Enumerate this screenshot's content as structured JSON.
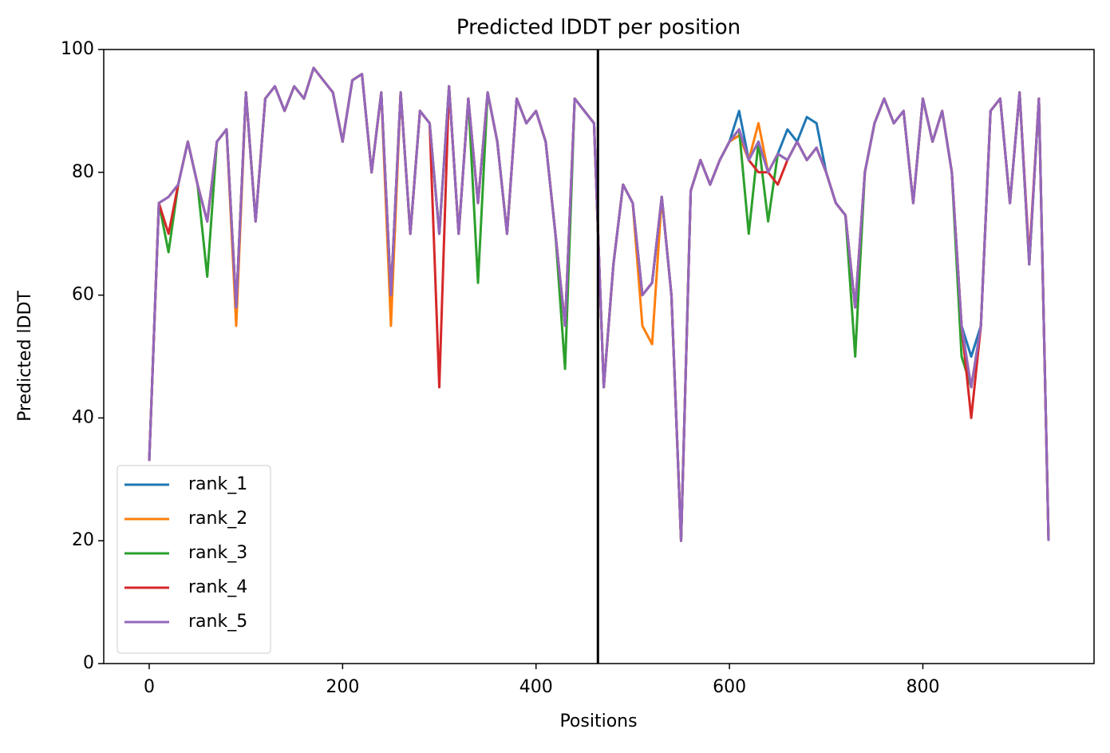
{
  "chart_data": {
    "type": "line",
    "title": "Predicted lDDT per position",
    "xlabel": "Positions",
    "ylabel": "Predicted lDDT",
    "x": [
      0,
      10,
      20,
      30,
      40,
      50,
      60,
      70,
      80,
      90,
      100,
      110,
      120,
      130,
      140,
      150,
      160,
      170,
      180,
      190,
      200,
      210,
      220,
      230,
      240,
      250,
      260,
      270,
      280,
      290,
      300,
      310,
      320,
      330,
      340,
      350,
      360,
      370,
      380,
      390,
      400,
      410,
      420,
      430,
      440,
      450,
      460,
      470,
      480,
      490,
      500,
      510,
      520,
      530,
      540,
      550,
      560,
      570,
      580,
      590,
      600,
      610,
      620,
      630,
      640,
      650,
      660,
      670,
      680,
      690,
      700,
      710,
      720,
      730,
      740,
      750,
      760,
      770,
      780,
      790,
      800,
      810,
      820,
      830,
      840,
      850,
      860,
      870,
      880,
      890,
      900,
      910,
      920,
      930
    ],
    "series": [
      {
        "name": "rank_1",
        "color": "#1f77b4",
        "values": [
          33,
          75,
          76,
          78,
          85,
          78,
          72,
          85,
          87,
          58,
          93,
          72,
          92,
          94,
          90,
          94,
          92,
          97,
          95,
          93,
          85,
          95,
          96,
          80,
          93,
          60,
          93,
          70,
          90,
          88,
          70,
          94,
          70,
          92,
          75,
          93,
          85,
          70,
          92,
          88,
          90,
          85,
          70,
          55,
          92,
          90,
          88,
          45,
          65,
          78,
          75,
          60,
          62,
          76,
          60,
          20,
          77,
          82,
          78,
          82,
          85,
          90,
          82,
          85,
          80,
          83,
          87,
          85,
          89,
          88,
          80,
          75,
          73,
          58,
          80,
          88,
          92,
          88,
          90,
          75,
          92,
          85,
          90,
          80,
          55,
          50,
          55,
          90,
          92,
          75,
          93,
          65,
          92,
          20
        ]
      },
      {
        "name": "rank_2",
        "color": "#ff7f0e",
        "values": [
          33,
          75,
          76,
          78,
          85,
          78,
          72,
          85,
          87,
          55,
          93,
          72,
          92,
          94,
          90,
          94,
          92,
          97,
          95,
          93,
          85,
          95,
          96,
          80,
          93,
          55,
          93,
          70,
          90,
          88,
          70,
          94,
          70,
          92,
          75,
          93,
          85,
          70,
          92,
          88,
          90,
          85,
          70,
          55,
          92,
          90,
          88,
          45,
          65,
          78,
          75,
          55,
          52,
          76,
          60,
          20,
          77,
          82,
          78,
          82,
          85,
          86,
          82,
          88,
          80,
          83,
          82,
          85,
          82,
          84,
          80,
          75,
          73,
          58,
          80,
          88,
          92,
          88,
          90,
          75,
          92,
          85,
          90,
          80,
          55,
          45,
          55,
          90,
          92,
          75,
          93,
          65,
          92,
          20
        ]
      },
      {
        "name": "rank_3",
        "color": "#2ca02c",
        "values": [
          33,
          75,
          67,
          78,
          85,
          78,
          63,
          85,
          87,
          58,
          93,
          72,
          92,
          94,
          90,
          94,
          92,
          97,
          95,
          93,
          85,
          95,
          96,
          80,
          93,
          60,
          93,
          70,
          90,
          88,
          70,
          94,
          70,
          92,
          62,
          93,
          85,
          70,
          92,
          88,
          90,
          85,
          70,
          48,
          92,
          90,
          88,
          45,
          65,
          78,
          75,
          60,
          62,
          76,
          60,
          20,
          77,
          82,
          78,
          82,
          85,
          87,
          70,
          85,
          72,
          83,
          82,
          85,
          82,
          84,
          80,
          75,
          73,
          50,
          80,
          88,
          92,
          88,
          90,
          75,
          92,
          85,
          90,
          80,
          50,
          45,
          55,
          90,
          92,
          75,
          93,
          65,
          92,
          20
        ]
      },
      {
        "name": "rank_4",
        "color": "#d62728",
        "values": [
          33,
          75,
          70,
          78,
          85,
          78,
          72,
          85,
          87,
          58,
          93,
          72,
          92,
          94,
          90,
          94,
          92,
          97,
          95,
          93,
          85,
          95,
          96,
          80,
          93,
          60,
          93,
          70,
          90,
          88,
          45,
          94,
          70,
          92,
          75,
          93,
          85,
          70,
          92,
          88,
          90,
          85,
          70,
          55,
          92,
          90,
          88,
          45,
          65,
          78,
          75,
          60,
          62,
          76,
          60,
          20,
          77,
          82,
          78,
          82,
          85,
          87,
          82,
          80,
          80,
          78,
          82,
          85,
          82,
          84,
          80,
          75,
          73,
          58,
          80,
          88,
          92,
          88,
          90,
          75,
          92,
          85,
          90,
          80,
          55,
          40,
          55,
          90,
          92,
          75,
          93,
          66,
          92,
          20
        ]
      },
      {
        "name": "rank_5",
        "color": "#9467bd",
        "values": [
          33,
          75,
          76,
          78,
          85,
          78,
          72,
          85,
          87,
          58,
          93,
          72,
          92,
          94,
          90,
          94,
          92,
          97,
          95,
          93,
          85,
          95,
          96,
          80,
          93,
          60,
          93,
          70,
          90,
          88,
          70,
          94,
          70,
          92,
          75,
          93,
          85,
          70,
          92,
          88,
          90,
          85,
          70,
          55,
          92,
          90,
          88,
          45,
          65,
          78,
          75,
          60,
          62,
          76,
          60,
          20,
          77,
          82,
          78,
          82,
          85,
          87,
          82,
          85,
          80,
          83,
          82,
          85,
          82,
          84,
          80,
          75,
          73,
          58,
          80,
          88,
          92,
          88,
          90,
          75,
          92,
          85,
          90,
          80,
          55,
          45,
          55,
          90,
          92,
          75,
          93,
          65,
          92,
          20
        ]
      }
    ],
    "vline": 464,
    "xlim": [
      -47,
      977
    ],
    "xticks": [
      0,
      200,
      400,
      600,
      800
    ],
    "ylim": [
      0,
      100
    ],
    "yticks": [
      0,
      20,
      40,
      60,
      80,
      100
    ],
    "grid": false,
    "legend": "lower left"
  }
}
